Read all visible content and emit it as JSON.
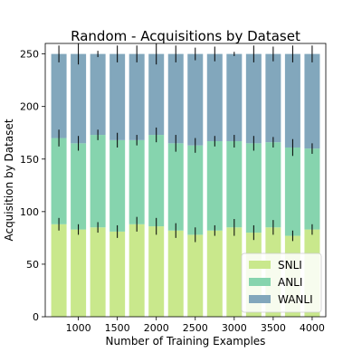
{
  "chart_data": {
    "type": "bar",
    "stacked": true,
    "title": "Random - Acquisitions by Dataset",
    "xlabel": "Number of Training Examples",
    "ylabel": "Acquisition by Dataset",
    "x": [
      750,
      1000,
      1250,
      1500,
      1750,
      2000,
      2250,
      2500,
      2750,
      3000,
      3250,
      3500,
      3750,
      4000
    ],
    "xticks": [
      1000,
      1500,
      2000,
      2500,
      3000,
      3500,
      4000
    ],
    "xtick_labels": [
      "1000",
      "1500",
      "2000",
      "2500",
      "3000",
      "3500",
      "4000"
    ],
    "xlim": [
      575,
      4175
    ],
    "yticks": [
      0,
      50,
      100,
      150,
      200,
      250
    ],
    "ytick_labels": [
      "0",
      "50",
      "100",
      "150",
      "200",
      "250"
    ],
    "ylim": [
      0,
      260
    ],
    "series": [
      {
        "name": "SNLI",
        "color": "#c9e88c",
        "values": [
          88,
          83,
          85,
          81,
          88,
          86,
          82,
          78,
          82,
          85,
          80,
          85,
          77,
          83
        ],
        "errors": [
          6,
          5,
          5,
          6,
          7,
          8,
          7,
          7,
          5,
          8,
          7,
          7,
          5,
          5
        ]
      },
      {
        "name": "ANLI",
        "color": "#86d4ae",
        "values": [
          82,
          82,
          88,
          87,
          80,
          87,
          83,
          85,
          85,
          82,
          85,
          81,
          84,
          77
        ],
        "errors": [
          8,
          7,
          5,
          7,
          5,
          7,
          8,
          7,
          5,
          6,
          7,
          5,
          8,
          5
        ]
      },
      {
        "name": "WANLI",
        "color": "#82a7bc",
        "values": [
          80,
          85,
          77,
          82,
          82,
          77,
          85,
          87,
          83,
          83,
          85,
          84,
          89,
          90
        ],
        "errors": [
          8,
          10,
          3,
          8,
          8,
          10,
          8,
          6,
          7,
          2,
          8,
          7,
          8,
          8
        ]
      }
    ],
    "legend": {
      "placement": "lower-right",
      "entries": [
        "SNLI",
        "ANLI",
        "WANLI"
      ]
    },
    "grid": false
  }
}
